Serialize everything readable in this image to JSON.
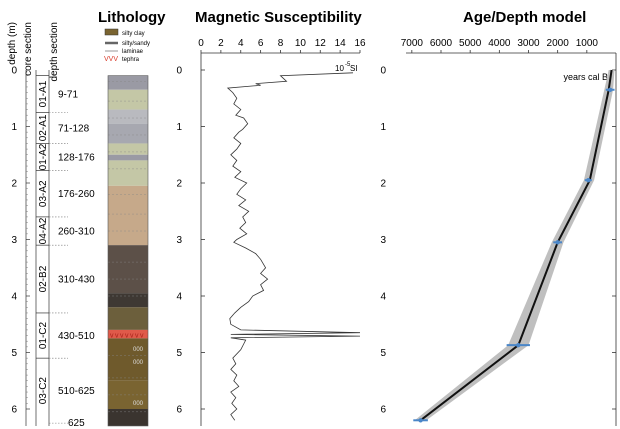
{
  "chart_data": [
    {
      "panel": "core",
      "type": "table",
      "header": {
        "depth": "depth (m)",
        "core_section": "core section",
        "depth_section": "depth section"
      },
      "depth_ticks": [
        0,
        1,
        2,
        3,
        4,
        5,
        6
      ],
      "sections": [
        {
          "name": "01-A1",
          "top": 0.1,
          "bottom": 0.75,
          "label": "9-71"
        },
        {
          "name": "02-A1",
          "top": 0.75,
          "bottom": 1.3,
          "label": "71-128"
        },
        {
          "name": "01-A2",
          "top": 1.3,
          "bottom": 1.78,
          "label": "128-176"
        },
        {
          "name": "03-A2",
          "top": 1.78,
          "bottom": 2.6,
          "label": "176-260"
        },
        {
          "name": "04-A2",
          "top": 2.6,
          "bottom": 3.1,
          "label": "260-310"
        },
        {
          "name": "02-B2",
          "top": 3.1,
          "bottom": 4.3,
          "label": "310-430"
        },
        {
          "name": "01-C2",
          "top": 4.3,
          "bottom": 5.1,
          "label": "430-510"
        },
        {
          "name": "03-C2",
          "top": 5.1,
          "bottom": 6.25,
          "label": "510-625"
        }
      ],
      "bottom_label": "625"
    },
    {
      "panel": "lithology",
      "type": "table",
      "title": "Lithology",
      "legend": [
        "silty clay",
        "silty/sandy",
        "laminae",
        "tephra"
      ],
      "layers": [
        {
          "top": 0.0,
          "bottom": 0.1,
          "color": "#ffffff"
        },
        {
          "top": 0.1,
          "bottom": 0.35,
          "color": "#9a9aa4"
        },
        {
          "top": 0.35,
          "bottom": 0.7,
          "color": "#c4c7a6"
        },
        {
          "top": 0.7,
          "bottom": 0.95,
          "color": "#b9babf"
        },
        {
          "top": 0.95,
          "bottom": 1.3,
          "color": "#a7a8b0"
        },
        {
          "top": 1.3,
          "bottom": 1.5,
          "color": "#c4c7a6"
        },
        {
          "top": 1.5,
          "bottom": 1.6,
          "color": "#9a9aa4"
        },
        {
          "top": 1.6,
          "bottom": 2.05,
          "color": "#c4c7a6"
        },
        {
          "top": 2.05,
          "bottom": 3.1,
          "color": "#c6a98a"
        },
        {
          "top": 3.1,
          "bottom": 3.95,
          "color": "#5c5048"
        },
        {
          "top": 3.95,
          "bottom": 4.2,
          "color": "#3e3833"
        },
        {
          "top": 4.2,
          "bottom": 4.6,
          "color": "#6c5f3c"
        },
        {
          "top": 4.6,
          "bottom": 4.75,
          "color": "#e05a4a"
        },
        {
          "top": 4.75,
          "bottom": 5.5,
          "color": "#6f5a2c"
        },
        {
          "top": 5.5,
          "bottom": 6.0,
          "color": "#7a6431"
        },
        {
          "top": 6.0,
          "bottom": 6.3,
          "color": "#3a342f"
        }
      ]
    },
    {
      "panel": "magnetic",
      "type": "line",
      "title": "Magnetic Susceptibility",
      "xlim": [
        0,
        16
      ],
      "x_ticks": [
        0,
        2,
        4,
        6,
        8,
        10,
        12,
        14,
        16
      ],
      "ylim": [
        0,
        6.2
      ],
      "y_ticks": [
        0,
        1,
        2,
        3,
        4,
        5,
        6
      ],
      "unit_label": {
        "base": "10",
        "exp": "-5",
        "suffix": "SI"
      },
      "points": [
        [
          15.3,
          0.05
        ],
        [
          8.0,
          0.1
        ],
        [
          8.6,
          0.2
        ],
        [
          5.5,
          0.24
        ],
        [
          6.0,
          0.27
        ],
        [
          2.7,
          0.32
        ],
        [
          3.2,
          0.4
        ],
        [
          3.6,
          0.5
        ],
        [
          3.3,
          0.6
        ],
        [
          4.0,
          0.7
        ],
        [
          3.5,
          0.8
        ],
        [
          4.3,
          0.85
        ],
        [
          4.7,
          0.95
        ],
        [
          4.2,
          1.05
        ],
        [
          3.8,
          1.1
        ],
        [
          3.3,
          1.2
        ],
        [
          4.0,
          1.3
        ],
        [
          3.6,
          1.4
        ],
        [
          3.0,
          1.5
        ],
        [
          3.6,
          1.6
        ],
        [
          3.2,
          1.7
        ],
        [
          4.0,
          1.8
        ],
        [
          3.4,
          1.9
        ],
        [
          4.6,
          2.0
        ],
        [
          4.0,
          2.1
        ],
        [
          3.6,
          2.2
        ],
        [
          4.5,
          2.3
        ],
        [
          3.8,
          2.4
        ],
        [
          4.8,
          2.5
        ],
        [
          4.2,
          2.6
        ],
        [
          4.5,
          2.7
        ],
        [
          3.9,
          2.8
        ],
        [
          4.6,
          2.9
        ],
        [
          3.6,
          3.0
        ],
        [
          3.3,
          3.05
        ],
        [
          4.5,
          3.15
        ],
        [
          5.5,
          3.25
        ],
        [
          6.0,
          3.35
        ],
        [
          6.5,
          3.5
        ],
        [
          6.0,
          3.6
        ],
        [
          6.7,
          3.7
        ],
        [
          6.0,
          3.8
        ],
        [
          6.3,
          3.9
        ],
        [
          5.2,
          4.0
        ],
        [
          4.8,
          4.1
        ],
        [
          4.0,
          4.2
        ],
        [
          3.4,
          4.3
        ],
        [
          2.9,
          4.4
        ],
        [
          3.0,
          4.5
        ],
        [
          4.0,
          4.6
        ],
        [
          16.0,
          4.65
        ],
        [
          3.0,
          4.68
        ],
        [
          16.0,
          4.71
        ],
        [
          3.0,
          4.74
        ],
        [
          4.5,
          4.78
        ],
        [
          4.3,
          4.85
        ],
        [
          4.0,
          4.95
        ],
        [
          3.2,
          5.1
        ],
        [
          3.5,
          5.2
        ],
        [
          3.0,
          5.3
        ],
        [
          3.6,
          5.4
        ],
        [
          3.3,
          5.5
        ],
        [
          3.8,
          5.6
        ],
        [
          3.0,
          5.7
        ],
        [
          3.5,
          5.8
        ],
        [
          3.1,
          5.9
        ],
        [
          3.6,
          6.0
        ],
        [
          3.0,
          6.1
        ],
        [
          3.4,
          6.2
        ]
      ]
    },
    {
      "panel": "age_depth",
      "type": "line",
      "title": "Age/Depth model",
      "x_axis_label": "years cal BP",
      "xlim": [
        7200,
        0
      ],
      "x_ticks": [
        7000,
        6000,
        5000,
        4000,
        3000,
        2000,
        1000
      ],
      "ylim": [
        0,
        6.2
      ],
      "y_ticks": [
        0,
        1,
        2,
        3,
        4,
        5,
        6
      ],
      "model": [
        [
          150,
          0.0
        ],
        [
          250,
          0.35
        ],
        [
          900,
          1.95
        ],
        [
          2000,
          3.05
        ],
        [
          3350,
          4.87
        ],
        [
          6700,
          6.2
        ]
      ],
      "envelope_older": [
        [
          250,
          0.0
        ],
        [
          400,
          0.35
        ],
        [
          1100,
          1.95
        ],
        [
          2200,
          3.05
        ],
        [
          3700,
          4.87
        ],
        [
          6900,
          6.2
        ]
      ],
      "envelope_younger": [
        [
          50,
          0.0
        ],
        [
          100,
          0.35
        ],
        [
          750,
          1.95
        ],
        [
          1800,
          3.05
        ],
        [
          3000,
          4.87
        ],
        [
          6500,
          6.2
        ]
      ],
      "dates": [
        {
          "age": 200,
          "depth": 0.35,
          "err": 150
        },
        {
          "age": 950,
          "depth": 1.95,
          "err": 120
        },
        {
          "age": 2000,
          "depth": 3.05,
          "err": 150
        },
        {
          "age": 3350,
          "depth": 4.87,
          "err": 400
        },
        {
          "age": 6700,
          "depth": 6.2,
          "err": 250
        }
      ]
    }
  ]
}
